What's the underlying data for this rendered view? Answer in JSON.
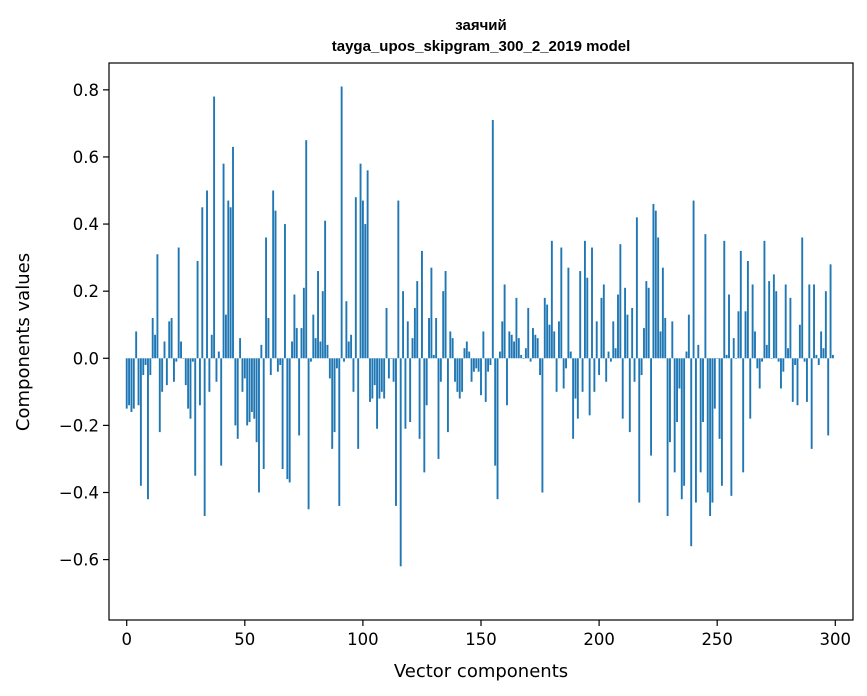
{
  "chart_data": {
    "type": "bar",
    "title": "заячий",
    "subtitle": "tayga_upos_skipgram_300_2_2019 model",
    "xlabel": "Vector components",
    "ylabel": "Components values",
    "xlim": [
      -7.5,
      307.5
    ],
    "ylim": [
      -0.78,
      0.88
    ],
    "xticks": [
      0,
      50,
      100,
      150,
      200,
      250,
      300
    ],
    "xtick_labels": [
      "0",
      "50",
      "100",
      "150",
      "200",
      "250",
      "300"
    ],
    "yticks": [
      -0.6,
      -0.4,
      -0.2,
      0.0,
      0.2,
      0.4,
      0.6,
      0.8
    ],
    "ytick_labels": [
      "−0.6",
      "−0.4",
      "−0.2",
      "0.0",
      "0.2",
      "0.4",
      "0.6",
      "0.8"
    ],
    "bar_color": "#1f77b4",
    "values": [
      -0.15,
      -0.14,
      -0.16,
      -0.15,
      0.08,
      -0.14,
      -0.38,
      -0.05,
      -0.02,
      -0.42,
      -0.05,
      0.12,
      0.07,
      0.31,
      -0.22,
      -0.1,
      0.05,
      -0.08,
      0.11,
      0.12,
      -0.07,
      -0.01,
      0.33,
      0.05,
      0.0,
      -0.08,
      -0.15,
      -0.18,
      -0.01,
      -0.35,
      0.29,
      -0.14,
      0.45,
      -0.47,
      0.5,
      -0.1,
      0.07,
      0.78,
      -0.07,
      0.02,
      -0.32,
      0.58,
      0.13,
      0.47,
      0.45,
      0.63,
      -0.2,
      -0.24,
      0.06,
      -0.1,
      -0.06,
      -0.2,
      -0.19,
      -0.16,
      -0.18,
      -0.25,
      -0.4,
      0.04,
      -0.33,
      0.36,
      0.12,
      -0.05,
      0.5,
      0.44,
      -0.04,
      -0.02,
      -0.33,
      0.4,
      -0.36,
      -0.37,
      0.05,
      0.19,
      0.09,
      -0.23,
      0.09,
      0.21,
      0.65,
      -0.45,
      -0.01,
      0.13,
      0.06,
      0.26,
      0.05,
      0.2,
      0.41,
      0.04,
      -0.06,
      -0.27,
      -0.22,
      -0.03,
      -0.44,
      0.81,
      -0.01,
      0.17,
      0.05,
      0.07,
      -0.1,
      0.48,
      -0.27,
      0.58,
      0.47,
      0.4,
      0.56,
      -0.13,
      -0.12,
      -0.08,
      -0.21,
      -0.12,
      -0.1,
      -0.12,
      0.15,
      -0.06,
      0.0,
      -0.07,
      -0.44,
      0.47,
      -0.62,
      0.2,
      -0.21,
      0.11,
      -0.19,
      0.06,
      0.15,
      0.23,
      -0.24,
      0.32,
      -0.34,
      -0.14,
      0.12,
      0.27,
      0.01,
      0.12,
      -0.3,
      -0.07,
      0.2,
      0.26,
      -0.22,
      0.08,
      0.06,
      -0.07,
      -0.1,
      -0.12,
      -0.1,
      0.03,
      0.05,
      0.02,
      -0.07,
      -0.04,
      -0.03,
      -0.04,
      -0.11,
      0.08,
      -0.13,
      -0.04,
      -0.02,
      0.71,
      -0.32,
      -0.42,
      0.02,
      0.11,
      0.22,
      -0.14,
      0.08,
      0.07,
      0.05,
      0.18,
      0.06,
      0.01,
      0.0,
      0.03,
      0.15,
      -0.01,
      0.09,
      0.07,
      0.06,
      -0.05,
      -0.4,
      0.18,
      0.16,
      0.1,
      0.35,
      0.08,
      -0.1,
      0.11,
      0.33,
      -0.09,
      -0.03,
      0.27,
      0.02,
      -0.24,
      -0.12,
      -0.18,
      0.26,
      -0.1,
      0.35,
      0.24,
      -0.17,
      0.33,
      -0.1,
      0.11,
      -0.05,
      0.18,
      0.22,
      -0.07,
      0.02,
      -0.01,
      0.11,
      0.03,
      0.19,
      0.34,
      -0.18,
      0.21,
      0.13,
      -0.22,
      0.15,
      -0.07,
      0.42,
      -0.43,
      -0.05,
      0.09,
      0.23,
      0.21,
      -0.29,
      0.46,
      0.44,
      0.36,
      0.08,
      0.27,
      0.12,
      -0.47,
      -0.25,
      0.11,
      -0.34,
      -0.19,
      -0.09,
      -0.42,
      -0.38,
      0.02,
      0.13,
      -0.56,
      0.47,
      -0.43,
      0.04,
      -0.34,
      -0.19,
      0.37,
      -0.4,
      -0.47,
      -0.43,
      -0.15,
      0.0,
      -0.24,
      -0.38,
      0.35,
      0.01,
      0.19,
      -0.41,
      0.06,
      0.0,
      0.14,
      0.32,
      -0.34,
      0.14,
      0.29,
      -0.18,
      0.22,
      0.08,
      -0.03,
      -0.09,
      -0.01,
      0.35,
      0.04,
      0.23,
      0.0,
      0.25,
      0.2,
      -0.01,
      -0.09,
      -0.04,
      0.22,
      0.03,
      0.18,
      -0.13,
      -0.02,
      -0.14,
      0.1,
      0.36,
      -0.01,
      -0.13,
      0.22,
      -0.27,
      0.22,
      0.01,
      -0.02,
      0.08,
      0.03,
      0.2,
      -0.23,
      0.28,
      0.01
    ]
  }
}
